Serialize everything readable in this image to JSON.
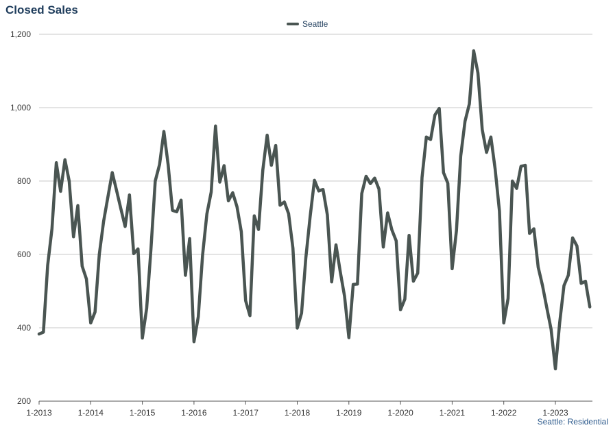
{
  "chart_data": {
    "type": "line",
    "title": "Closed Sales",
    "source_note": "Seattle: Residential",
    "legend_position": "top-center",
    "grid": true,
    "colors": {
      "series": "#4a5552",
      "grid": "#c8c8c8",
      "title": "#1f3d5c",
      "note": "#2d5a8c"
    },
    "ylim": [
      200,
      1200
    ],
    "yticks": [
      {
        "value": 200,
        "label": "200"
      },
      {
        "value": 400,
        "label": "400"
      },
      {
        "value": 600,
        "label": "600"
      },
      {
        "value": 800,
        "label": "800"
      },
      {
        "value": 1000,
        "label": "1,000"
      },
      {
        "value": 1200,
        "label": "1,200"
      }
    ],
    "xticks": [
      "1-2013",
      "1-2014",
      "1-2015",
      "1-2016",
      "1-2017",
      "1-2018",
      "1-2019",
      "1-2020",
      "1-2021",
      "1-2022",
      "1-2023"
    ],
    "x_start": "1-2013",
    "x_end": "9-2023",
    "series": [
      {
        "name": "Seattle",
        "values": [
          383,
          388,
          570,
          670,
          850,
          772,
          858,
          800,
          648,
          733,
          568,
          533,
          413,
          443,
          600,
          690,
          757,
          823,
          775,
          725,
          676,
          762,
          602,
          615,
          372,
          453,
          613,
          800,
          845,
          935,
          845,
          720,
          716,
          748,
          543,
          643,
          362,
          430,
          597,
          710,
          770,
          950,
          797,
          842,
          746,
          768,
          730,
          662,
          474,
          433,
          705,
          668,
          830,
          925,
          843,
          897,
          734,
          743,
          711,
          617,
          399,
          440,
          590,
          703,
          802,
          773,
          777,
          708,
          525,
          626,
          553,
          486,
          373,
          518,
          519,
          766,
          813,
          793,
          808,
          778,
          620,
          713,
          667,
          637,
          449,
          478,
          652,
          527,
          549,
          810,
          920,
          913,
          980,
          998,
          823,
          794,
          561,
          665,
          868,
          963,
          1010,
          1155,
          1095,
          940,
          878,
          920,
          833,
          718,
          413,
          480,
          800,
          780,
          840,
          843,
          657,
          670,
          565,
          515,
          455,
          396,
          288,
          415,
          515,
          543,
          645,
          623,
          521,
          527,
          457
        ]
      }
    ]
  }
}
